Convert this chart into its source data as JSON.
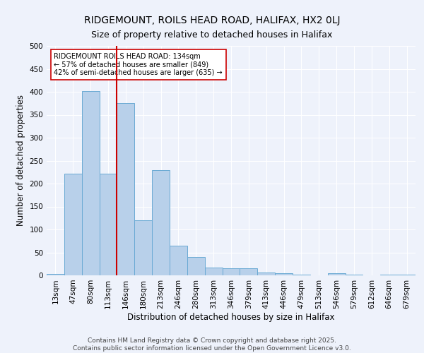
{
  "title_line1": "RIDGEMOUNT, ROILS HEAD ROAD, HALIFAX, HX2 0LJ",
  "title_line2": "Size of property relative to detached houses in Halifax",
  "xlabel": "Distribution of detached houses by size in Halifax",
  "ylabel": "Number of detached properties",
  "categories": [
    "13sqm",
    "47sqm",
    "80sqm",
    "113sqm",
    "146sqm",
    "180sqm",
    "213sqm",
    "246sqm",
    "280sqm",
    "313sqm",
    "346sqm",
    "379sqm",
    "413sqm",
    "446sqm",
    "479sqm",
    "513sqm",
    "546sqm",
    "579sqm",
    "612sqm",
    "646sqm",
    "679sqm"
  ],
  "values": [
    3,
    221,
    402,
    222,
    376,
    120,
    229,
    65,
    40,
    17,
    15,
    15,
    6,
    4,
    1,
    0,
    5,
    1,
    0,
    2,
    2
  ],
  "bar_color": "#b8d0ea",
  "bar_edge_color": "#6aaad4",
  "red_line_index": 4,
  "red_line_color": "#cc0000",
  "annotation_line1": "RIDGEMOUNT ROILS HEAD ROAD: 134sqm",
  "annotation_line2": "← 57% of detached houses are smaller (849)",
  "annotation_line3": "42% of semi-detached houses are larger (635) →",
  "annotation_box_color": "#ffffff",
  "annotation_box_edge": "#cc0000",
  "ylim": [
    0,
    500
  ],
  "yticks": [
    0,
    50,
    100,
    150,
    200,
    250,
    300,
    350,
    400,
    450,
    500
  ],
  "background_color": "#eef2fb",
  "grid_color": "#ffffff",
  "footer_text": "Contains HM Land Registry data © Crown copyright and database right 2025.\nContains public sector information licensed under the Open Government Licence v3.0.",
  "title_fontsize": 10,
  "subtitle_fontsize": 9,
  "axis_label_fontsize": 8.5,
  "tick_fontsize": 7.5,
  "annotation_fontsize": 7,
  "footer_fontsize": 6.5
}
